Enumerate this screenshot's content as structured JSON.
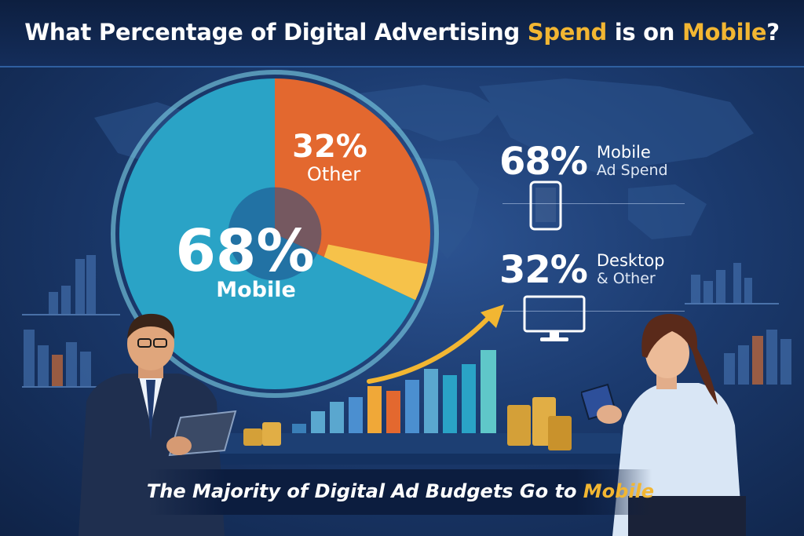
{
  "title": {
    "part1": "What Percentage of Digital Advertising ",
    "highlight1": "Spend",
    "part2": " is on ",
    "highlight2": "Mobile",
    "part3": "?"
  },
  "chart_data": {
    "type": "pie",
    "title": "What Percentage of Digital Advertising Spend is on Mobile?",
    "slices": [
      {
        "label": "Mobile",
        "value": 68,
        "value_label": "68%",
        "color": "#2aa3c6"
      },
      {
        "label": "Other",
        "value": 32,
        "value_label": "32%",
        "color": "#e3682f"
      }
    ]
  },
  "stats": {
    "mobile": {
      "pct": "68%",
      "line1": "Mobile",
      "line2": "Ad Spend"
    },
    "desktop": {
      "pct": "32%",
      "line1": "Desktop",
      "line2": "& Other"
    }
  },
  "caption": {
    "text": "The Majority of Digital Ad Budgets Go to ",
    "highlight": "Mobile"
  },
  "colors": {
    "accent_gold": "#f2b632",
    "mobile_blue": "#2aa3c6",
    "other_orange": "#e3682f",
    "background": "#1b3a6e"
  },
  "icons": [
    "phone-icon",
    "monitor-icon",
    "trend-arrow-icon",
    "coin-stack-icon",
    "world-map"
  ]
}
